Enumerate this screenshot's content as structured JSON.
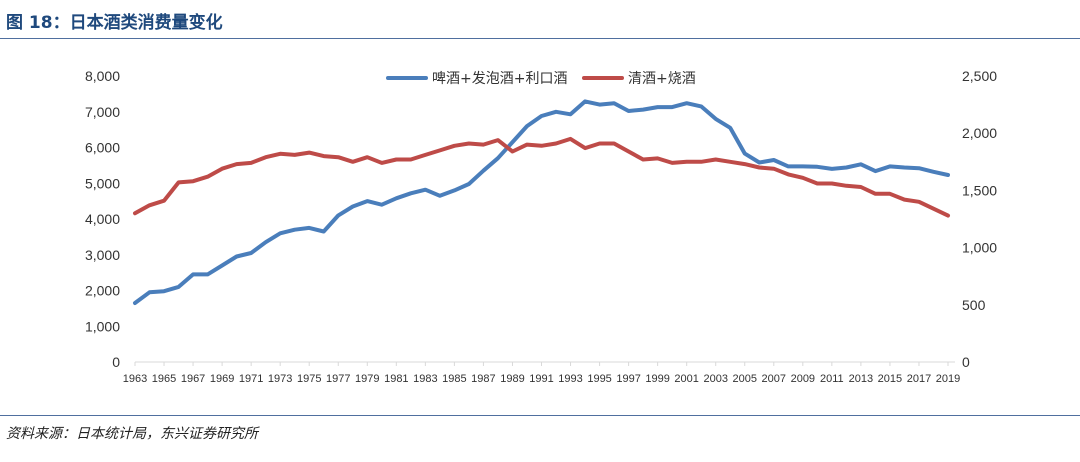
{
  "header": {
    "title": "图 18：日本酒类消费量变化"
  },
  "footer": {
    "source": "资料来源：日本统计局，东兴证券研究所"
  },
  "chart_data": {
    "type": "line",
    "title": "",
    "xlabel": "",
    "ylabel": "",
    "legend_position": "top-center",
    "grid": false,
    "x": [
      1963,
      1964,
      1965,
      1966,
      1967,
      1968,
      1969,
      1970,
      1971,
      1972,
      1973,
      1974,
      1975,
      1976,
      1977,
      1978,
      1979,
      1980,
      1981,
      1982,
      1983,
      1984,
      1985,
      1986,
      1987,
      1988,
      1989,
      1990,
      1991,
      1992,
      1993,
      1994,
      1995,
      1996,
      1997,
      1998,
      1999,
      2000,
      2001,
      2002,
      2003,
      2004,
      2005,
      2006,
      2007,
      2008,
      2009,
      2010,
      2011,
      2012,
      2013,
      2014,
      2015,
      2016,
      2017,
      2018,
      2019
    ],
    "x_tick_labels": [
      "1963",
      "1965",
      "1967",
      "1969",
      "1971",
      "1973",
      "1975",
      "1977",
      "1979",
      "1981",
      "1983",
      "1985",
      "1987",
      "1989",
      "1991",
      "1993",
      "1995",
      "1997",
      "1999",
      "2001",
      "2003",
      "2005",
      "2007",
      "2009",
      "2011",
      "2013",
      "2015",
      "2017",
      "2019"
    ],
    "y_left": {
      "range": [
        0,
        8000
      ],
      "ticks": [
        "0",
        "1,000",
        "2,000",
        "3,000",
        "4,000",
        "5,000",
        "6,000",
        "7,000",
        "8,000"
      ]
    },
    "y_right": {
      "range": [
        0,
        2500
      ],
      "ticks": [
        "0",
        "500",
        "1,000",
        "1,500",
        "2,000",
        "2,500"
      ]
    },
    "series": [
      {
        "name": "啤酒+发泡酒+利口酒",
        "axis": "left",
        "color": "#4a7ebb",
        "values": [
          1650,
          1950,
          1980,
          2100,
          2450,
          2450,
          2700,
          2950,
          3050,
          3350,
          3600,
          3700,
          3750,
          3650,
          4100,
          4350,
          4500,
          4400,
          4580,
          4720,
          4820,
          4650,
          4800,
          4980,
          5350,
          5700,
          6150,
          6600,
          6880,
          7000,
          6930,
          7290,
          7200,
          7240,
          7020,
          7060,
          7130,
          7130,
          7240,
          7150,
          6800,
          6550,
          5830,
          5580,
          5650,
          5470,
          5470,
          5460,
          5400,
          5440,
          5530,
          5340,
          5470,
          5440,
          5420,
          5320,
          5230
        ]
      },
      {
        "name": "清酒+烧酒",
        "axis": "right",
        "color": "#be4b48",
        "values": [
          1300,
          1370,
          1410,
          1570,
          1580,
          1620,
          1690,
          1730,
          1740,
          1790,
          1820,
          1810,
          1830,
          1800,
          1790,
          1750,
          1790,
          1740,
          1770,
          1770,
          1810,
          1850,
          1890,
          1910,
          1900,
          1940,
          1840,
          1900,
          1890,
          1910,
          1950,
          1870,
          1910,
          1910,
          1840,
          1770,
          1780,
          1740,
          1750,
          1750,
          1770,
          1750,
          1730,
          1700,
          1690,
          1640,
          1610,
          1560,
          1560,
          1540,
          1530,
          1470,
          1470,
          1420,
          1400,
          1340,
          1280
        ]
      }
    ]
  }
}
